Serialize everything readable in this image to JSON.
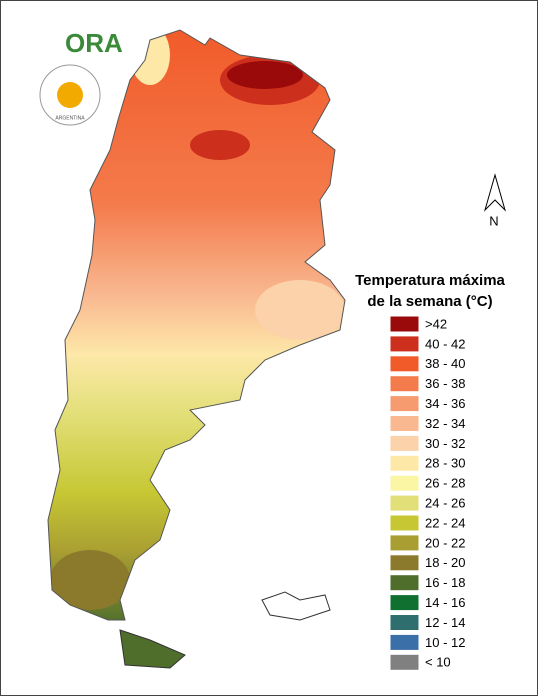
{
  "logo": {
    "name": "ORA",
    "agency": "ARGENTINA"
  },
  "north": "N",
  "legend": {
    "title_lines": [
      "Temperatura máxima",
      "de la semana (°C)"
    ],
    "items": [
      {
        "label": ">42",
        "color": "#9a0a0a"
      },
      {
        "label": "40 - 42",
        "color": "#cc2f1c"
      },
      {
        "label": "38 - 40",
        "color": "#f15a29"
      },
      {
        "label": "36 - 38",
        "color": "#f47b4c"
      },
      {
        "label": "34 - 36",
        "color": "#f69a70"
      },
      {
        "label": "32 - 34",
        "color": "#f9b890"
      },
      {
        "label": "30 - 32",
        "color": "#fbd2a9"
      },
      {
        "label": "28 - 30",
        "color": "#fde8a8"
      },
      {
        "label": "26 - 28",
        "color": "#fbf6a4"
      },
      {
        "label": "24 - 26",
        "color": "#e2df78"
      },
      {
        "label": "22 - 24",
        "color": "#c7c734"
      },
      {
        "label": "20 - 22",
        "color": "#a89e32"
      },
      {
        "label": "18 - 20",
        "color": "#8c7a2c"
      },
      {
        "label": "16 - 18",
        "color": "#4f6e2c"
      },
      {
        "label": "14 - 16",
        "color": "#107030"
      },
      {
        "label": "12 - 14",
        "color": "#2f6e6e"
      },
      {
        "label": "10 - 12",
        "color": "#3b6fa8"
      },
      {
        "label": "< 10",
        "color": "#808080"
      }
    ]
  }
}
